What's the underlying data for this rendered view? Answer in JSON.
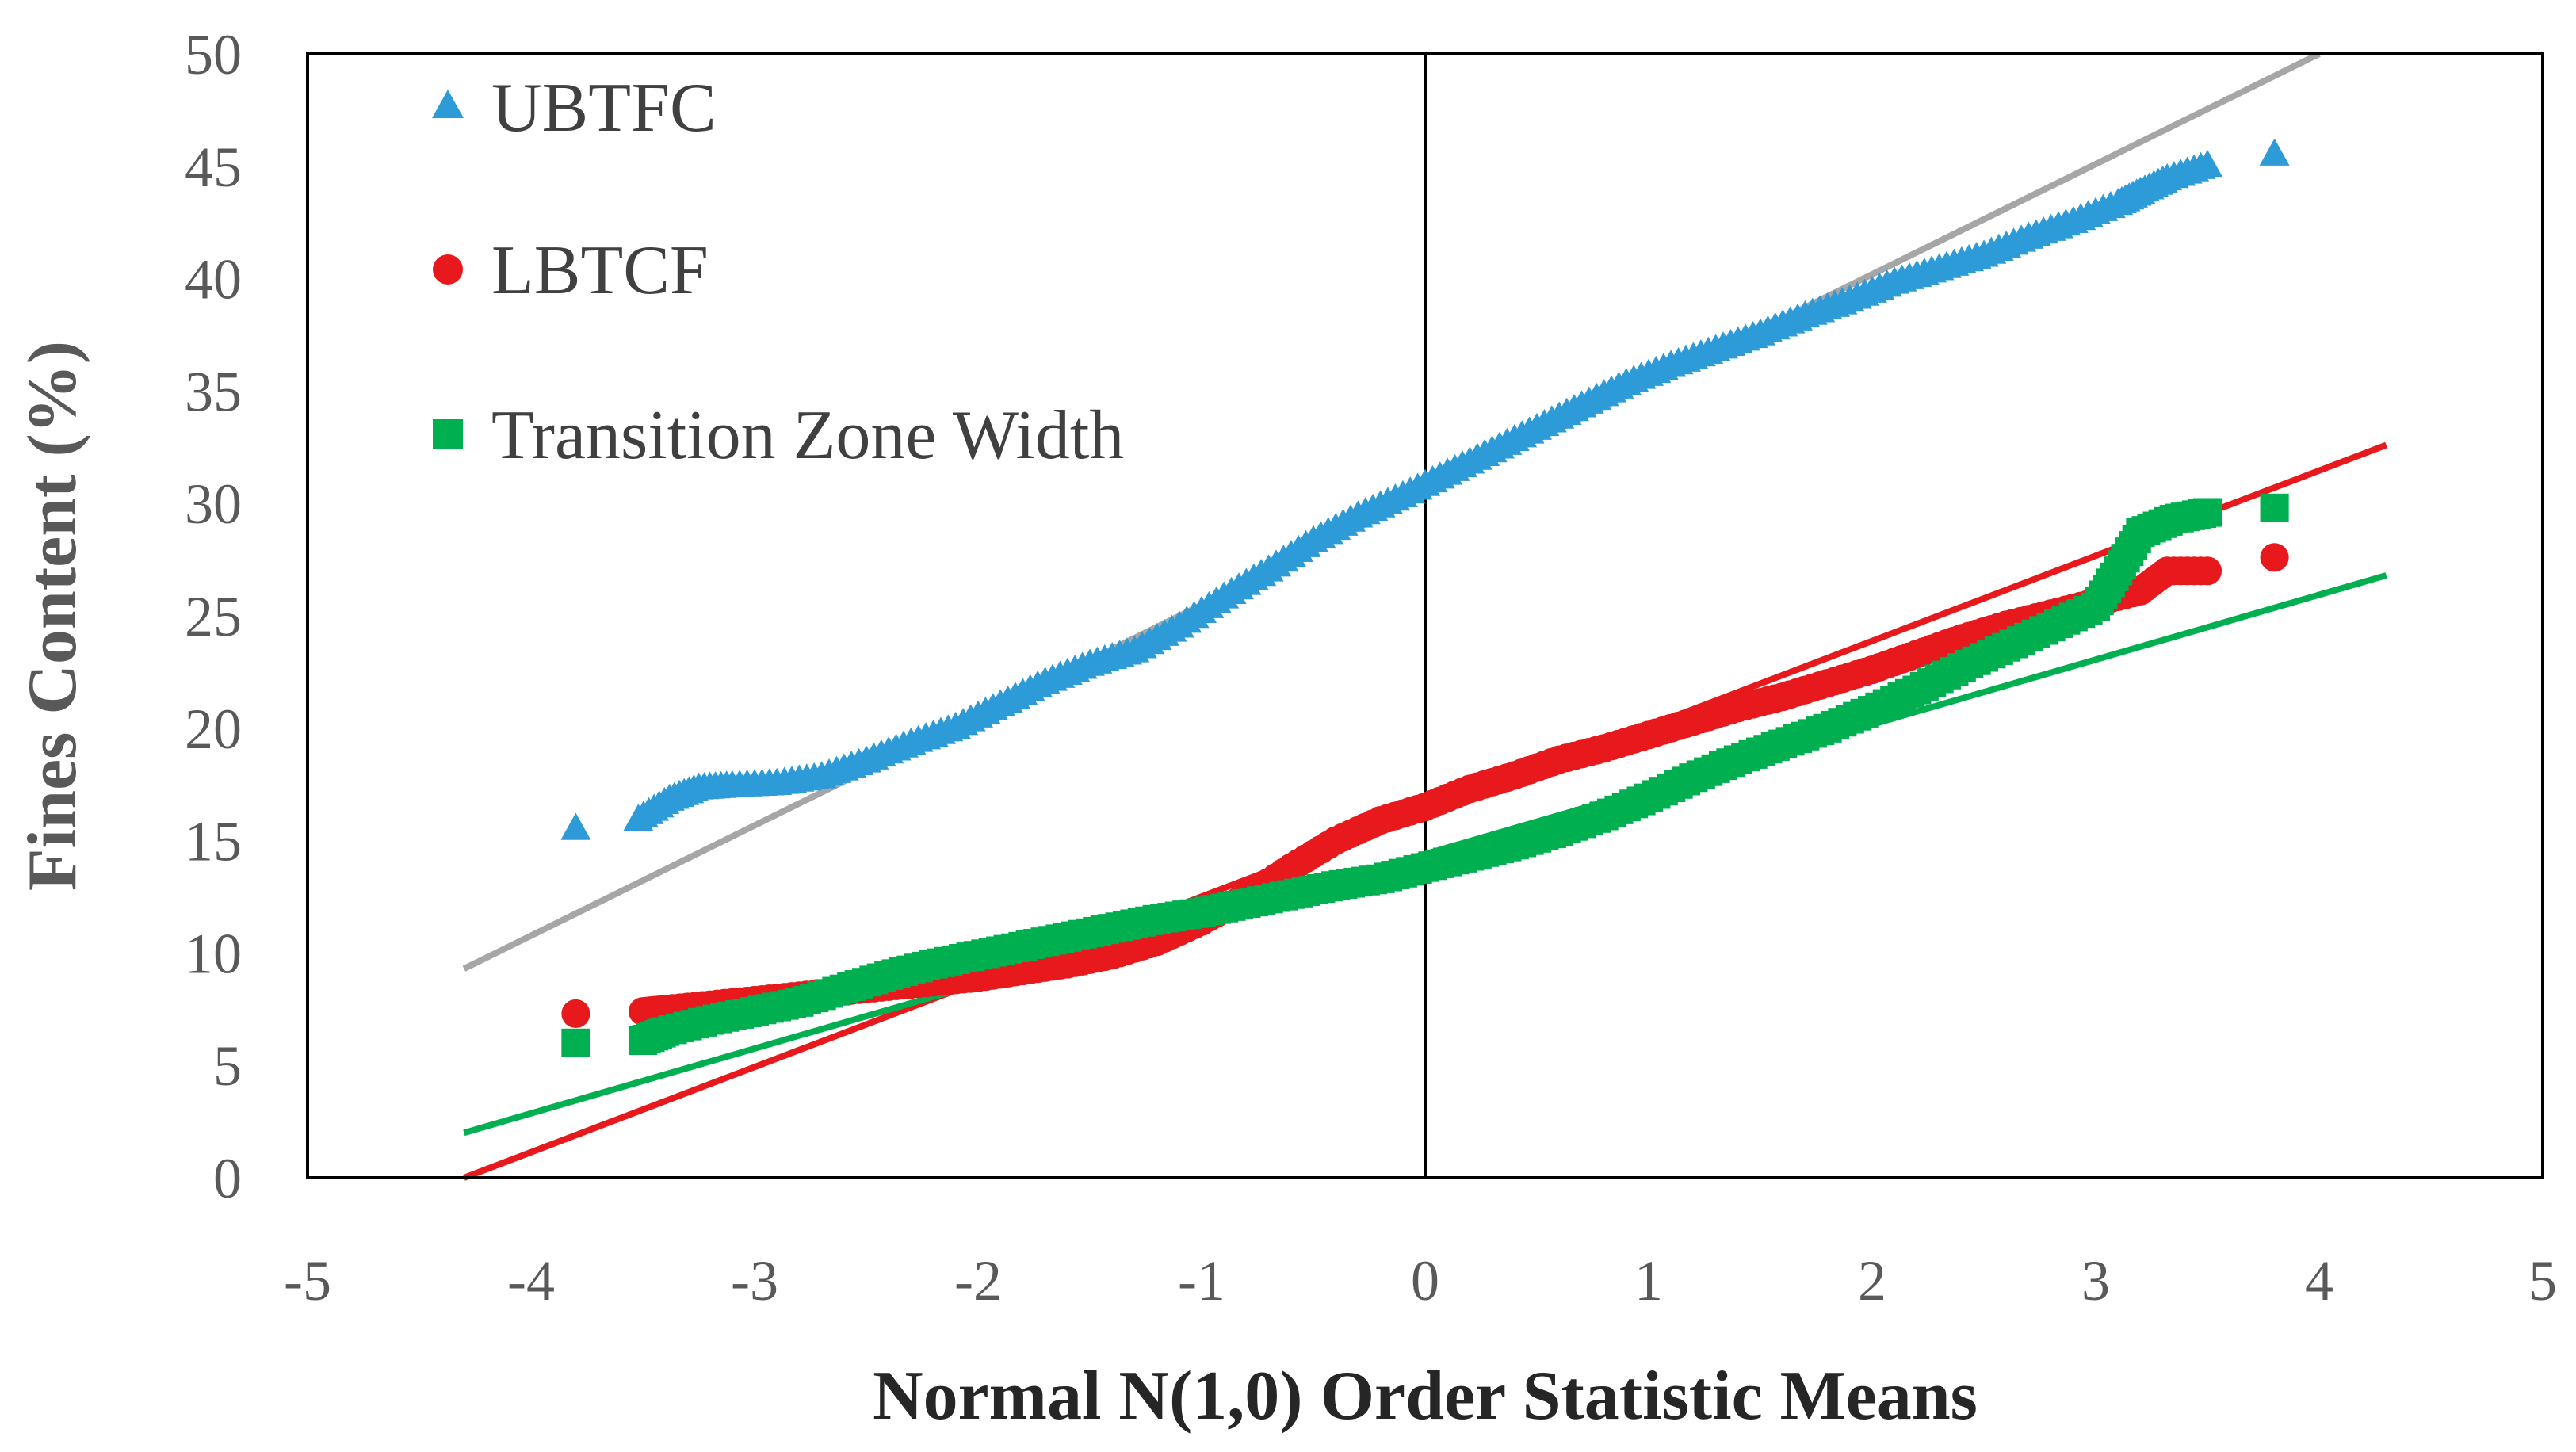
{
  "chart_data": {
    "type": "scatter",
    "title": "",
    "xlabel": "Normal N(1,0) Order Statistic Means",
    "ylabel": "Fines Content (%)",
    "xlim": [
      -5,
      5
    ],
    "ylim": [
      0,
      50
    ],
    "x_ticks": [
      "-5",
      "-4",
      "-3",
      "-2",
      "-1",
      "0",
      "1",
      "2",
      "3",
      "4",
      "5"
    ],
    "y_ticks": [
      "0",
      "5",
      "10",
      "15",
      "20",
      "25",
      "30",
      "35",
      "40",
      "45",
      "50"
    ],
    "legend": {
      "placement": "top-left",
      "entries": [
        "UBTFC",
        "LBTCF",
        "Transition Zone Width"
      ]
    },
    "series": [
      {
        "name": "UBTFC",
        "marker": "triangle",
        "color": "#2E9BD9",
        "points": [
          [
            -3.8,
            15.5
          ],
          [
            -3.52,
            15.9
          ],
          [
            -3.38,
            16.8
          ],
          [
            -3.25,
            17.3
          ],
          [
            -3.1,
            17.4
          ],
          [
            -2.9,
            17.5
          ],
          [
            -2.7,
            17.8
          ],
          [
            -2.5,
            18.5
          ],
          [
            -2.3,
            19.3
          ],
          [
            -2.1,
            20.0
          ],
          [
            -1.9,
            21.0
          ],
          [
            -1.7,
            22.0
          ],
          [
            -1.5,
            22.8
          ],
          [
            -1.3,
            23.4
          ],
          [
            -1.1,
            24.5
          ],
          [
            -0.9,
            25.8
          ],
          [
            -0.7,
            27.0
          ],
          [
            -0.5,
            28.3
          ],
          [
            -0.3,
            29.4
          ],
          [
            -0.1,
            30.3
          ],
          [
            0.1,
            31.3
          ],
          [
            0.3,
            32.3
          ],
          [
            0.5,
            33.3
          ],
          [
            0.7,
            34.3
          ],
          [
            0.9,
            35.3
          ],
          [
            1.1,
            36.1
          ],
          [
            1.3,
            36.8
          ],
          [
            1.5,
            37.5
          ],
          [
            1.7,
            38.3
          ],
          [
            1.9,
            39.0
          ],
          [
            2.1,
            39.8
          ],
          [
            2.3,
            40.4
          ],
          [
            2.5,
            41.0
          ],
          [
            2.7,
            41.8
          ],
          [
            2.9,
            42.5
          ],
          [
            3.1,
            43.3
          ],
          [
            3.2,
            43.8
          ],
          [
            3.32,
            44.4
          ],
          [
            3.5,
            45.0
          ],
          [
            3.8,
            45.5
          ]
        ],
        "fit_line": {
          "color": "#A6A6A6",
          "from": [
            -4.3,
            9.3
          ],
          "to": [
            4.0,
            50.0
          ]
        }
      },
      {
        "name": "LBTCF",
        "marker": "circle",
        "color": "#E8191C",
        "points": [
          [
            -3.8,
            7.3
          ],
          [
            -3.5,
            7.4
          ],
          [
            -3.4,
            7.5
          ],
          [
            -3.2,
            7.7
          ],
          [
            -3.0,
            7.9
          ],
          [
            -2.8,
            8.1
          ],
          [
            -2.6,
            8.3
          ],
          [
            -2.4,
            8.5
          ],
          [
            -2.2,
            8.7
          ],
          [
            -2.0,
            8.9
          ],
          [
            -1.8,
            9.2
          ],
          [
            -1.6,
            9.5
          ],
          [
            -1.4,
            9.9
          ],
          [
            -1.2,
            10.5
          ],
          [
            -1.0,
            11.4
          ],
          [
            -0.8,
            12.5
          ],
          [
            -0.6,
            13.8
          ],
          [
            -0.4,
            15.0
          ],
          [
            -0.2,
            15.9
          ],
          [
            0.0,
            16.5
          ],
          [
            0.2,
            17.3
          ],
          [
            0.4,
            17.9
          ],
          [
            0.6,
            18.6
          ],
          [
            0.8,
            19.1
          ],
          [
            1.0,
            19.7
          ],
          [
            1.2,
            20.3
          ],
          [
            1.4,
            20.9
          ],
          [
            1.6,
            21.4
          ],
          [
            1.8,
            22.0
          ],
          [
            2.0,
            22.6
          ],
          [
            2.2,
            23.3
          ],
          [
            2.4,
            24.0
          ],
          [
            2.6,
            24.6
          ],
          [
            2.8,
            25.1
          ],
          [
            3.0,
            25.6
          ],
          [
            3.2,
            26.1
          ],
          [
            3.32,
            27.0
          ],
          [
            3.5,
            27.0
          ],
          [
            3.8,
            27.6
          ]
        ],
        "fit_line": {
          "color": "#E8191C",
          "from": [
            -4.3,
            0.0
          ],
          "to": [
            4.3,
            32.6
          ]
        }
      },
      {
        "name": "Transition Zone Width",
        "marker": "square",
        "color": "#00B050",
        "points": [
          [
            -3.8,
            6.0
          ],
          [
            -3.5,
            6.1
          ],
          [
            -3.4,
            6.5
          ],
          [
            -3.2,
            7.0
          ],
          [
            -3.0,
            7.4
          ],
          [
            -2.8,
            7.8
          ],
          [
            -2.6,
            8.4
          ],
          [
            -2.4,
            9.0
          ],
          [
            -2.2,
            9.5
          ],
          [
            -2.0,
            9.9
          ],
          [
            -1.8,
            10.3
          ],
          [
            -1.6,
            10.7
          ],
          [
            -1.4,
            11.1
          ],
          [
            -1.2,
            11.5
          ],
          [
            -1.0,
            11.8
          ],
          [
            -0.8,
            12.2
          ],
          [
            -0.6,
            12.6
          ],
          [
            -0.4,
            13.0
          ],
          [
            -0.2,
            13.3
          ],
          [
            0.0,
            13.8
          ],
          [
            0.2,
            14.3
          ],
          [
            0.4,
            14.8
          ],
          [
            0.6,
            15.4
          ],
          [
            0.8,
            16.1
          ],
          [
            1.0,
            16.9
          ],
          [
            1.2,
            17.8
          ],
          [
            1.4,
            18.6
          ],
          [
            1.6,
            19.3
          ],
          [
            1.8,
            20.0
          ],
          [
            2.0,
            20.8
          ],
          [
            2.2,
            21.7
          ],
          [
            2.4,
            22.7
          ],
          [
            2.6,
            23.6
          ],
          [
            2.8,
            24.5
          ],
          [
            3.0,
            25.4
          ],
          [
            3.1,
            27.0
          ],
          [
            3.2,
            28.7
          ],
          [
            3.35,
            29.3
          ],
          [
            3.5,
            29.6
          ],
          [
            3.8,
            29.8
          ]
        ],
        "fit_line": {
          "color": "#00B050",
          "from": [
            -4.3,
            2.0
          ],
          "to": [
            4.3,
            26.8
          ]
        }
      }
    ]
  }
}
